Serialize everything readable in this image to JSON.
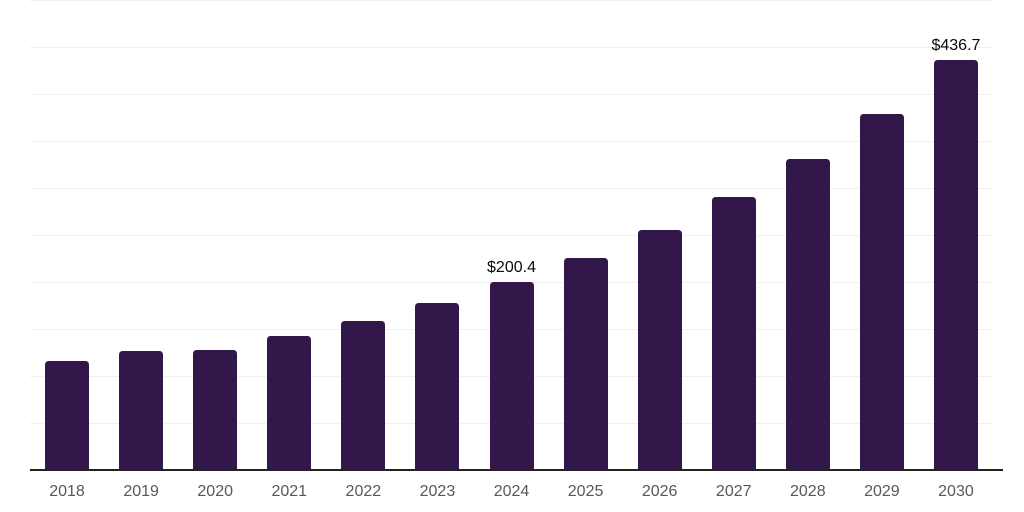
{
  "chart_data": {
    "type": "bar",
    "title": "",
    "xlabel": "",
    "ylabel": "",
    "ylim": [
      0,
      500
    ],
    "gridline_step": 50,
    "grid": "horizontal-only",
    "legend": "none",
    "y_axis_tick_labels_visible": false,
    "categories": [
      "2018",
      "2019",
      "2020",
      "2021",
      "2022",
      "2023",
      "2024",
      "2025",
      "2026",
      "2027",
      "2028",
      "2029",
      "2030"
    ],
    "values": [
      116,
      127,
      128,
      143,
      159,
      178,
      200.4,
      226,
      255,
      290,
      331,
      379,
      436.7
    ],
    "bars": [
      {
        "year": "2018",
        "value": 116,
        "label": ""
      },
      {
        "year": "2019",
        "value": 127,
        "label": ""
      },
      {
        "year": "2020",
        "value": 128,
        "label": ""
      },
      {
        "year": "2021",
        "value": 143,
        "label": ""
      },
      {
        "year": "2022",
        "value": 159,
        "label": ""
      },
      {
        "year": "2023",
        "value": 178,
        "label": ""
      },
      {
        "year": "2024",
        "value": 200.4,
        "label": "$200.4"
      },
      {
        "year": "2025",
        "value": 226,
        "label": ""
      },
      {
        "year": "2026",
        "value": 255,
        "label": ""
      },
      {
        "year": "2027",
        "value": 290,
        "label": ""
      },
      {
        "year": "2028",
        "value": 331,
        "label": ""
      },
      {
        "year": "2029",
        "value": 379,
        "label": ""
      },
      {
        "year": "2030",
        "value": 436.7,
        "label": "$436.7"
      }
    ],
    "colors": {
      "bar": "#32174a",
      "gridline": "#f0f0f0",
      "axis_line": "#222222",
      "tick_label": "#58585a",
      "data_label": "#0a0a0a",
      "background": "#ffffff"
    }
  }
}
